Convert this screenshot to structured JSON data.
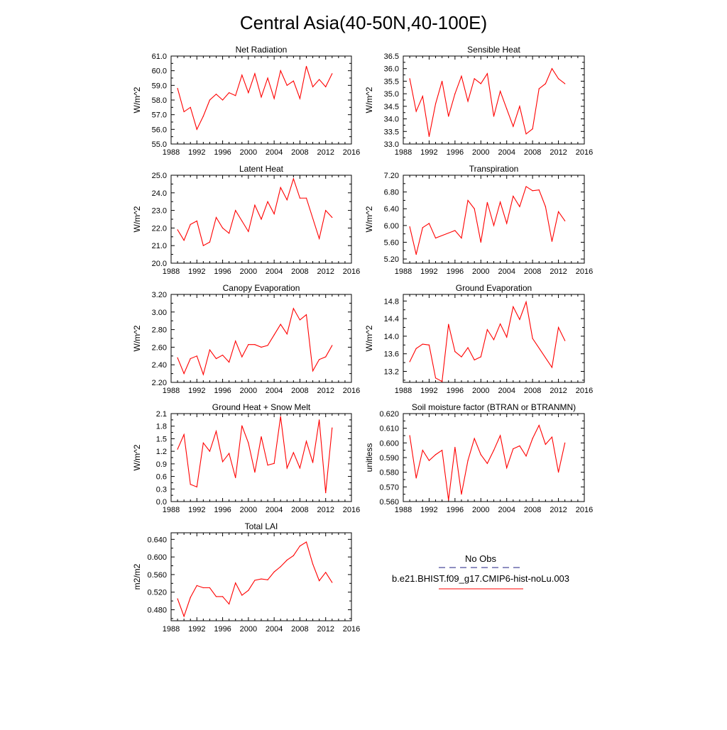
{
  "figure": {
    "title": "Central Asia(40-50N,40-100E)"
  },
  "legend": {
    "entries": [
      {
        "label": "No Obs",
        "color": "#4b4b9a",
        "style": "dashed"
      },
      {
        "label": "b.e21.BHIST.f09_g17.CMIP6-hist-noLu.003",
        "color": "#ff0000",
        "style": "solid"
      }
    ]
  },
  "chart_data": [
    {
      "type": "line",
      "title": "Net Radiation",
      "xlabel": "",
      "ylabel": "W/m^2",
      "xlim": [
        1988,
        2016
      ],
      "ylim": [
        55,
        61
      ],
      "xticks": [
        "1988",
        "1992",
        "1996",
        "2000",
        "2004",
        "2008",
        "2012",
        "2016"
      ],
      "yticks": [
        "55.0",
        "56.0",
        "57.0",
        "58.0",
        "59.0",
        "60.0",
        "61.0"
      ],
      "series": [
        {
          "color": "#ff0000",
          "x": [
            1989,
            1990,
            1991,
            1992,
            1993,
            1994,
            1995,
            1996,
            1997,
            1998,
            1999,
            2000,
            2001,
            2002,
            2003,
            2004,
            2005,
            2006,
            2007,
            2008,
            2009,
            2010,
            2011,
            2012,
            2013
          ],
          "values": [
            58.8,
            57.2,
            57.5,
            56.0,
            56.9,
            58.0,
            58.4,
            58.0,
            58.5,
            58.3,
            59.7,
            58.5,
            59.8,
            58.2,
            59.5,
            58.1,
            60.0,
            59.0,
            59.3,
            58.1,
            60.3,
            58.9,
            59.4,
            58.9,
            59.8
          ]
        }
      ]
    },
    {
      "type": "line",
      "title": "Sensible Heat",
      "xlabel": "",
      "ylabel": "W/m^2",
      "xlim": [
        1988,
        2016
      ],
      "ylim": [
        33.0,
        36.5
      ],
      "xticks": [
        "1988",
        "1992",
        "1996",
        "2000",
        "2004",
        "2008",
        "2012",
        "2016"
      ],
      "yticks": [
        "33.0",
        "33.5",
        "34.0",
        "34.5",
        "35.0",
        "35.5",
        "36.0",
        "36.5"
      ],
      "series": [
        {
          "color": "#ff0000",
          "x": [
            1989,
            1990,
            1991,
            1992,
            1993,
            1994,
            1995,
            1996,
            1997,
            1998,
            1999,
            2000,
            2001,
            2002,
            2003,
            2004,
            2005,
            2006,
            2007,
            2008,
            2009,
            2010,
            2011,
            2012,
            2013
          ],
          "values": [
            35.6,
            34.3,
            34.9,
            33.3,
            34.6,
            35.5,
            34.1,
            35.0,
            35.7,
            34.7,
            35.6,
            35.4,
            35.8,
            34.1,
            35.1,
            34.4,
            33.7,
            34.5,
            33.4,
            33.6,
            35.2,
            35.4,
            36.0,
            35.6,
            35.4
          ]
        }
      ]
    },
    {
      "type": "line",
      "title": "Latent Heat",
      "xlabel": "",
      "ylabel": "W/m^2",
      "xlim": [
        1988,
        2016
      ],
      "ylim": [
        20,
        25
      ],
      "xticks": [
        "1988",
        "1992",
        "1996",
        "2000",
        "2004",
        "2008",
        "2012",
        "2016"
      ],
      "yticks": [
        "20.0",
        "21.0",
        "22.0",
        "23.0",
        "24.0",
        "25.0"
      ],
      "series": [
        {
          "color": "#ff0000",
          "x": [
            1989,
            1990,
            1991,
            1992,
            1993,
            1994,
            1995,
            1996,
            1997,
            1998,
            1999,
            2000,
            2001,
            2002,
            2003,
            2004,
            2005,
            2006,
            2007,
            2008,
            2009,
            2011,
            2012,
            2013
          ],
          "values": [
            21.9,
            21.3,
            22.2,
            22.4,
            21.0,
            21.2,
            22.6,
            22.0,
            21.7,
            23.0,
            22.4,
            21.8,
            23.3,
            22.5,
            23.5,
            22.8,
            24.3,
            23.6,
            24.8,
            23.7,
            23.7,
            21.4,
            23.0,
            22.6
          ]
        }
      ]
    },
    {
      "type": "line",
      "title": "Transpiration",
      "xlabel": "",
      "ylabel": "W/m^2",
      "xlim": [
        1988,
        2016
      ],
      "ylim": [
        5.1,
        7.2
      ],
      "xticks": [
        "1988",
        "1992",
        "1996",
        "2000",
        "2004",
        "2008",
        "2012",
        "2016"
      ],
      "yticks": [
        "5.20",
        "5.60",
        "6.00",
        "6.40",
        "6.80",
        "7.20"
      ],
      "series": [
        {
          "color": "#ff0000",
          "x": [
            1989,
            1990,
            1991,
            1992,
            1993,
            1996,
            1997,
            1998,
            1999,
            2000,
            2001,
            2002,
            2003,
            2004,
            2005,
            2006,
            2007,
            2008,
            2009,
            2010,
            2011,
            2012,
            2013
          ],
          "values": [
            5.97,
            5.31,
            5.95,
            6.05,
            5.7,
            5.88,
            5.7,
            6.6,
            6.4,
            5.6,
            6.55,
            6.0,
            6.56,
            6.05,
            6.7,
            6.45,
            6.93,
            6.83,
            6.85,
            6.45,
            5.62,
            6.33,
            6.11
          ]
        }
      ]
    },
    {
      "type": "line",
      "title": "Canopy Evaporation",
      "xlabel": "",
      "ylabel": "W/m^2",
      "xlim": [
        1988,
        2016
      ],
      "ylim": [
        2.2,
        3.2
      ],
      "xticks": [
        "1988",
        "1992",
        "1996",
        "2000",
        "2004",
        "2008",
        "2012",
        "2016"
      ],
      "yticks": [
        "2.20",
        "2.40",
        "2.60",
        "2.80",
        "3.00",
        "3.20"
      ],
      "series": [
        {
          "color": "#ff0000",
          "x": [
            1989,
            1990,
            1991,
            1992,
            1993,
            1994,
            1995,
            1996,
            1997,
            1998,
            1999,
            2000,
            2001,
            2002,
            2003,
            2004,
            2005,
            2006,
            2007,
            2008,
            2009,
            2010,
            2011,
            2012,
            2013
          ],
          "values": [
            2.48,
            2.3,
            2.47,
            2.5,
            2.29,
            2.57,
            2.47,
            2.51,
            2.43,
            2.67,
            2.49,
            2.63,
            2.63,
            2.6,
            2.62,
            2.74,
            2.86,
            2.75,
            3.04,
            2.91,
            2.97,
            2.33,
            2.46,
            2.49,
            2.62
          ]
        }
      ]
    },
    {
      "type": "line",
      "title": "Ground Evaporation",
      "xlabel": "",
      "ylabel": "W/m^2",
      "xlim": [
        1988,
        2016
      ],
      "ylim": [
        12.95,
        14.95
      ],
      "xticks": [
        "1988",
        "1992",
        "1996",
        "2000",
        "2004",
        "2008",
        "2012",
        "2016"
      ],
      "yticks": [
        "13.2",
        "13.6",
        "14.0",
        "14.4",
        "14.8"
      ],
      "series": [
        {
          "color": "#ff0000",
          "x": [
            1989,
            1990,
            1991,
            1992,
            1993,
            1994,
            1995,
            1996,
            1997,
            1998,
            1999,
            2000,
            2001,
            2002,
            2003,
            2004,
            2005,
            2006,
            2007,
            2008,
            2011,
            2012,
            2013
          ],
          "values": [
            13.42,
            13.72,
            13.82,
            13.8,
            13.05,
            12.97,
            14.27,
            13.65,
            13.53,
            13.74,
            13.46,
            13.53,
            14.15,
            13.92,
            14.28,
            13.98,
            14.67,
            14.38,
            14.78,
            13.95,
            13.29,
            14.2,
            13.9
          ]
        }
      ]
    },
    {
      "type": "line",
      "title": "Ground Heat + Snow Melt",
      "xlabel": "",
      "ylabel": "W/m^2",
      "xlim": [
        1988,
        2016
      ],
      "ylim": [
        0,
        2.1
      ],
      "xticks": [
        "1988",
        "1992",
        "1996",
        "2000",
        "2004",
        "2008",
        "2012",
        "2016"
      ],
      "yticks": [
        "0.0",
        "0.3",
        "0.6",
        "0.9",
        "1.2",
        "1.5",
        "1.8",
        "2.1"
      ],
      "series": [
        {
          "color": "#ff0000",
          "x": [
            1989,
            1990,
            1991,
            1992,
            1993,
            1994,
            1995,
            1996,
            1997,
            1998,
            1999,
            2000,
            2001,
            2002,
            2003,
            2004,
            2005,
            2006,
            2007,
            2008,
            2009,
            2010,
            2011,
            2012,
            2013
          ],
          "values": [
            1.25,
            1.6,
            0.41,
            0.35,
            1.4,
            1.2,
            1.68,
            0.95,
            1.15,
            0.57,
            1.81,
            1.4,
            0.7,
            1.55,
            0.87,
            0.91,
            2.03,
            0.8,
            1.17,
            0.8,
            1.44,
            0.93,
            1.95,
            0.21,
            1.76
          ]
        }
      ]
    },
    {
      "type": "line",
      "title": "Soil moisture factor (BTRAN or BTRANMN)",
      "xlabel": "",
      "ylabel": "unitless",
      "xlim": [
        1988,
        2016
      ],
      "ylim": [
        0.56,
        0.62
      ],
      "xticks": [
        "1988",
        "1992",
        "1996",
        "2000",
        "2004",
        "2008",
        "2012",
        "2016"
      ],
      "yticks": [
        "0.560",
        "0.570",
        "0.580",
        "0.590",
        "0.600",
        "0.610",
        "0.620"
      ],
      "series": [
        {
          "color": "#ff0000",
          "x": [
            1989,
            1990,
            1991,
            1992,
            1993,
            1994,
            1995,
            1996,
            1997,
            1998,
            1999,
            2000,
            2001,
            2002,
            2003,
            2004,
            2005,
            2006,
            2007,
            2008,
            2009,
            2010,
            2011,
            2012,
            2013
          ],
          "values": [
            0.605,
            0.576,
            0.595,
            0.588,
            0.592,
            0.595,
            0.561,
            0.597,
            0.565,
            0.588,
            0.603,
            0.592,
            0.586,
            0.595,
            0.605,
            0.583,
            0.596,
            0.598,
            0.591,
            0.603,
            0.612,
            0.599,
            0.604,
            0.58,
            0.6
          ]
        }
      ]
    },
    {
      "type": "line",
      "title": "Total LAI",
      "xlabel": "",
      "ylabel": "m2/m2",
      "xlim": [
        1988,
        2016
      ],
      "ylim": [
        0.455,
        0.655
      ],
      "xticks": [
        "1988",
        "1992",
        "1996",
        "2000",
        "2004",
        "2008",
        "2012",
        "2016"
      ],
      "yticks": [
        "0.480",
        "0.520",
        "0.560",
        "0.600",
        "0.640"
      ],
      "series": [
        {
          "color": "#ff0000",
          "x": [
            1989,
            1990,
            1991,
            1992,
            1993,
            1994,
            1995,
            1996,
            1997,
            1998,
            1999,
            2000,
            2001,
            2002,
            2003,
            2004,
            2005,
            2006,
            2007,
            2008,
            2009,
            2010,
            2011,
            2012,
            2013
          ],
          "values": [
            0.505,
            0.465,
            0.508,
            0.535,
            0.53,
            0.53,
            0.51,
            0.51,
            0.493,
            0.541,
            0.513,
            0.524,
            0.547,
            0.55,
            0.548,
            0.566,
            0.578,
            0.593,
            0.603,
            0.625,
            0.634,
            0.584,
            0.546,
            0.565,
            0.542
          ]
        }
      ]
    }
  ]
}
